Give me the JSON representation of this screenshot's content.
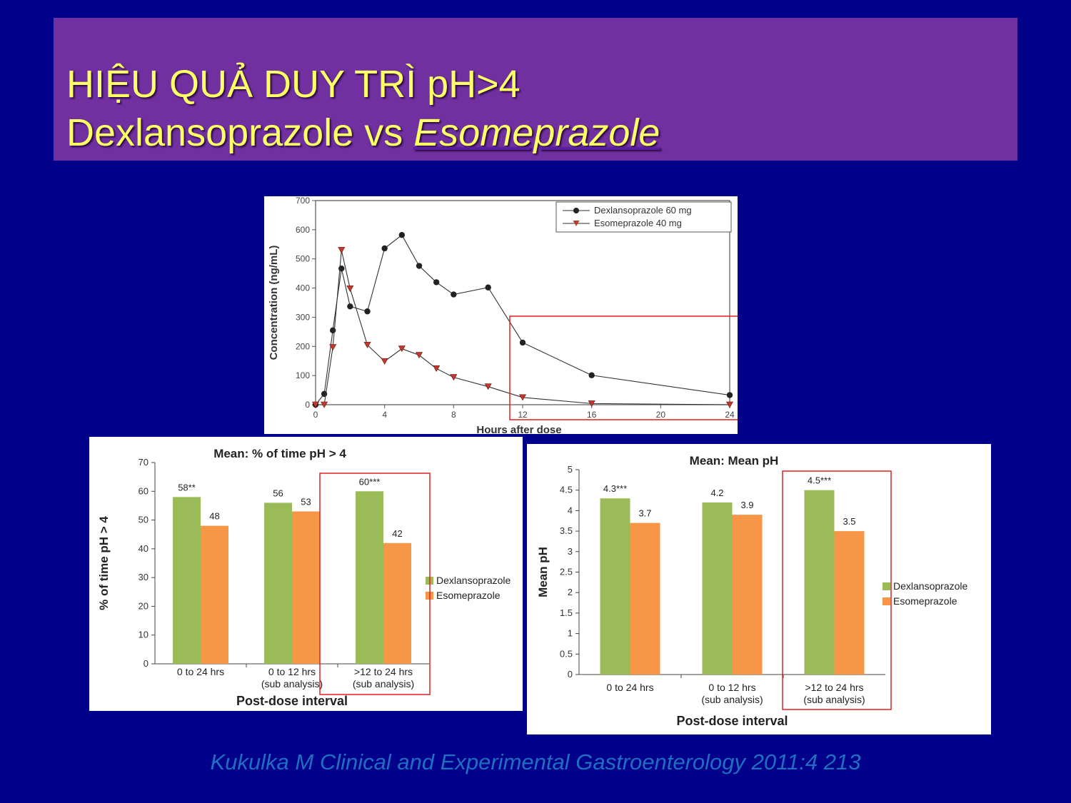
{
  "slide": {
    "title_line1": "HIỆU QUẢ DUY TRÌ pH>4",
    "title_line2_a": "Dexlansoprazole vs ",
    "title_line2_b": "Esomeprazole",
    "citation": "Kukulka M Clinical and Experimental Gastroenterology 2011:4 213"
  },
  "colors": {
    "background": "#00008b",
    "title_band": "#7030a0",
    "title_text": "#ffff66",
    "citation": "#1f6fc0",
    "dexlansoprazole_bar": "#9bbb59",
    "esomeprazole_bar": "#f79646",
    "highlight_box": "#e02020"
  },
  "chart_data": [
    {
      "type": "line",
      "xlabel": "Hours after dose",
      "ylabel": "Concentration (ng/mL)",
      "xlim": [
        0,
        24
      ],
      "ylim": [
        0,
        700
      ],
      "xticks": [
        0,
        4,
        8,
        12,
        16,
        20,
        24
      ],
      "yticks": [
        0,
        100,
        200,
        300,
        400,
        500,
        600,
        700
      ],
      "legend_position": "top-right",
      "highlight": "x from 12 to 24",
      "series": [
        {
          "name": "Dexlansoprazole 60 mg",
          "marker": "circle",
          "x": [
            0,
            0.5,
            1,
            1.5,
            2,
            3,
            4,
            5,
            6,
            7,
            8,
            10,
            12,
            16,
            24
          ],
          "y": [
            0,
            37,
            255,
            467,
            337,
            320,
            536,
            582,
            476,
            420,
            378,
            402,
            213,
            101,
            33
          ]
        },
        {
          "name": "Esomeprazole 40 mg",
          "marker": "triangle-down",
          "x": [
            0,
            0.5,
            1,
            1.5,
            2,
            3,
            4,
            5,
            6,
            7,
            8,
            10,
            12,
            16,
            24
          ],
          "y": [
            0,
            0,
            197,
            530,
            398,
            205,
            149,
            192,
            170,
            124,
            94,
            62,
            25,
            4,
            0
          ]
        }
      ]
    },
    {
      "type": "bar",
      "title": "Mean: % of time pH > 4",
      "xlabel": "Post-dose interval",
      "ylabel": "% of time pH > 4",
      "ylim": [
        0,
        70
      ],
      "yticks": [
        0,
        10,
        20,
        30,
        40,
        50,
        60,
        70
      ],
      "categories": [
        [
          "0 to 24 hrs"
        ],
        [
          "0 to 12 hrs",
          "(sub analysis)"
        ],
        [
          ">12 to 24 hrs",
          "(sub analysis)"
        ]
      ],
      "legend_position": "right",
      "highlight": "third category",
      "series": [
        {
          "name": "Dexlansoprazole",
          "values": [
            58,
            56,
            60
          ],
          "labels": [
            "58**",
            "56",
            "60***"
          ]
        },
        {
          "name": "Esomeprazole",
          "values": [
            48,
            53,
            42
          ],
          "labels": [
            "48",
            "53",
            "42"
          ]
        }
      ]
    },
    {
      "type": "bar",
      "title": "Mean: Mean pH",
      "xlabel": "Post-dose interval",
      "ylabel": "Mean pH",
      "ylim": [
        0,
        5
      ],
      "yticks": [
        "0",
        "0.5",
        "1",
        "1.5",
        "2",
        "2.5",
        "3",
        "3.5",
        "4",
        "4.5",
        "5"
      ],
      "categories": [
        [
          "0 to 24 hrs"
        ],
        [
          "0 to 12 hrs",
          "(sub analysis)"
        ],
        [
          ">12 to 24 hrs",
          "(sub analysis)"
        ]
      ],
      "legend_position": "right",
      "highlight": "third category",
      "series": [
        {
          "name": "Dexlansoprazole",
          "values": [
            4.3,
            4.2,
            4.5
          ],
          "labels": [
            "4.3***",
            "4.2",
            "4.5***"
          ]
        },
        {
          "name": "Esomeprazole",
          "values": [
            3.7,
            3.9,
            3.5
          ],
          "labels": [
            "3.7",
            "3.9",
            "3.5"
          ]
        }
      ]
    }
  ]
}
